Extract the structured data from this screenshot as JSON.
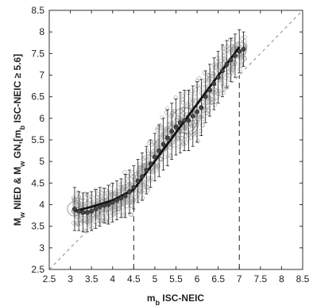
{
  "chart_data": {
    "type": "scatter",
    "xlabel_main": "m",
    "xlabel_sub": "b",
    "xlabel_rest": " ISC-NEIC",
    "ylabel_parts": [
      {
        "t": "M",
        "sub": false
      },
      {
        "t": "w",
        "sub": true
      },
      {
        "t": " NIED & M",
        "sub": false
      },
      {
        "t": "w",
        "sub": true
      },
      {
        "t": " GN,[m",
        "sub": false
      },
      {
        "t": "b",
        "sub": true
      },
      {
        "t": " ISC-NEIC ≥ 5.6]",
        "sub": false
      }
    ],
    "xlim": [
      2.5,
      8.5
    ],
    "ylim": [
      2.5,
      8.5
    ],
    "xticks": [
      "2.5",
      "3",
      "3.5",
      "4",
      "4.5",
      "5",
      "5.5",
      "6",
      "6.5",
      "7",
      "7.5",
      "8",
      "8.5"
    ],
    "yticks": [
      "2.5",
      "3",
      "3.5",
      "4",
      "4.5",
      "5",
      "5.5",
      "6",
      "6.5",
      "7",
      "7.5",
      "8",
      "8.5"
    ],
    "grid": false,
    "reference_line": {
      "x": [
        2.5,
        8.5
      ],
      "y": [
        2.5,
        8.5
      ],
      "style": "dashed"
    },
    "breakpoints_x": [
      4.5,
      7.0
    ],
    "fit_line": {
      "x": [
        3.1,
        3.5,
        4.0,
        4.5,
        7.0
      ],
      "y": [
        3.85,
        3.95,
        4.1,
        4.35,
        7.65
      ]
    },
    "binned_means": {
      "x": [
        3.1,
        3.2,
        3.3,
        3.4,
        3.5,
        3.6,
        3.7,
        3.8,
        3.9,
        4.0,
        4.1,
        4.2,
        4.3,
        4.4,
        4.5,
        4.6,
        4.7,
        4.8,
        4.9,
        5.0,
        5.1,
        5.2,
        5.3,
        5.4,
        5.5,
        5.6,
        5.7,
        5.8,
        5.9,
        6.0,
        6.1,
        6.2,
        6.3,
        6.4,
        6.5,
        6.6,
        6.7,
        6.8,
        6.9,
        7.0,
        7.1
      ],
      "y": [
        3.9,
        3.85,
        3.82,
        3.82,
        3.85,
        3.9,
        3.95,
        3.98,
        4.0,
        4.05,
        4.1,
        4.15,
        4.2,
        4.3,
        4.4,
        4.55,
        4.65,
        4.8,
        4.95,
        5.1,
        5.25,
        5.4,
        5.55,
        5.7,
        5.8,
        5.9,
        5.95,
        5.95,
        6.05,
        6.15,
        6.25,
        6.5,
        6.65,
        6.8,
        6.95,
        7.1,
        7.25,
        7.35,
        7.45,
        7.55,
        7.6
      ],
      "err": [
        0.5,
        0.45,
        0.45,
        0.45,
        0.45,
        0.45,
        0.45,
        0.4,
        0.45,
        0.45,
        0.45,
        0.45,
        0.5,
        0.5,
        0.5,
        0.5,
        0.55,
        0.55,
        0.55,
        0.55,
        0.6,
        0.6,
        0.65,
        0.65,
        0.65,
        0.7,
        0.7,
        0.7,
        0.7,
        0.7,
        0.65,
        0.6,
        0.6,
        0.6,
        0.6,
        0.6,
        0.55,
        0.5,
        0.5,
        0.5,
        0.4
      ]
    }
  }
}
